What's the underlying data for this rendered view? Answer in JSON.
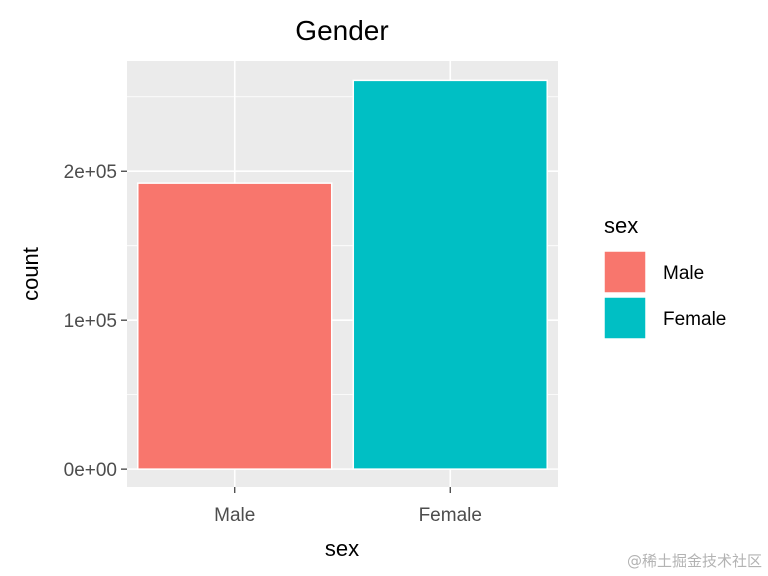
{
  "chart_data": {
    "type": "bar",
    "title": "Gender",
    "xlabel": "sex",
    "ylabel": "count",
    "categories": [
      "Male",
      "Female"
    ],
    "values": [
      192000,
      261000
    ],
    "colors": [
      "#F8766D",
      "#00BFC4"
    ],
    "ylim": [
      -12000,
      274000
    ],
    "yticks": [
      0,
      100000,
      200000
    ],
    "ytick_labels": [
      "0e+00",
      "1e+05",
      "2e+05"
    ],
    "yminor": [
      50000,
      150000,
      250000
    ],
    "grid": true,
    "panel_background": "#EBEBEB",
    "legend": {
      "title": "sex",
      "position": "right",
      "entries": [
        "Male",
        "Female"
      ]
    }
  },
  "watermark": "@稀土掘金技术社区"
}
